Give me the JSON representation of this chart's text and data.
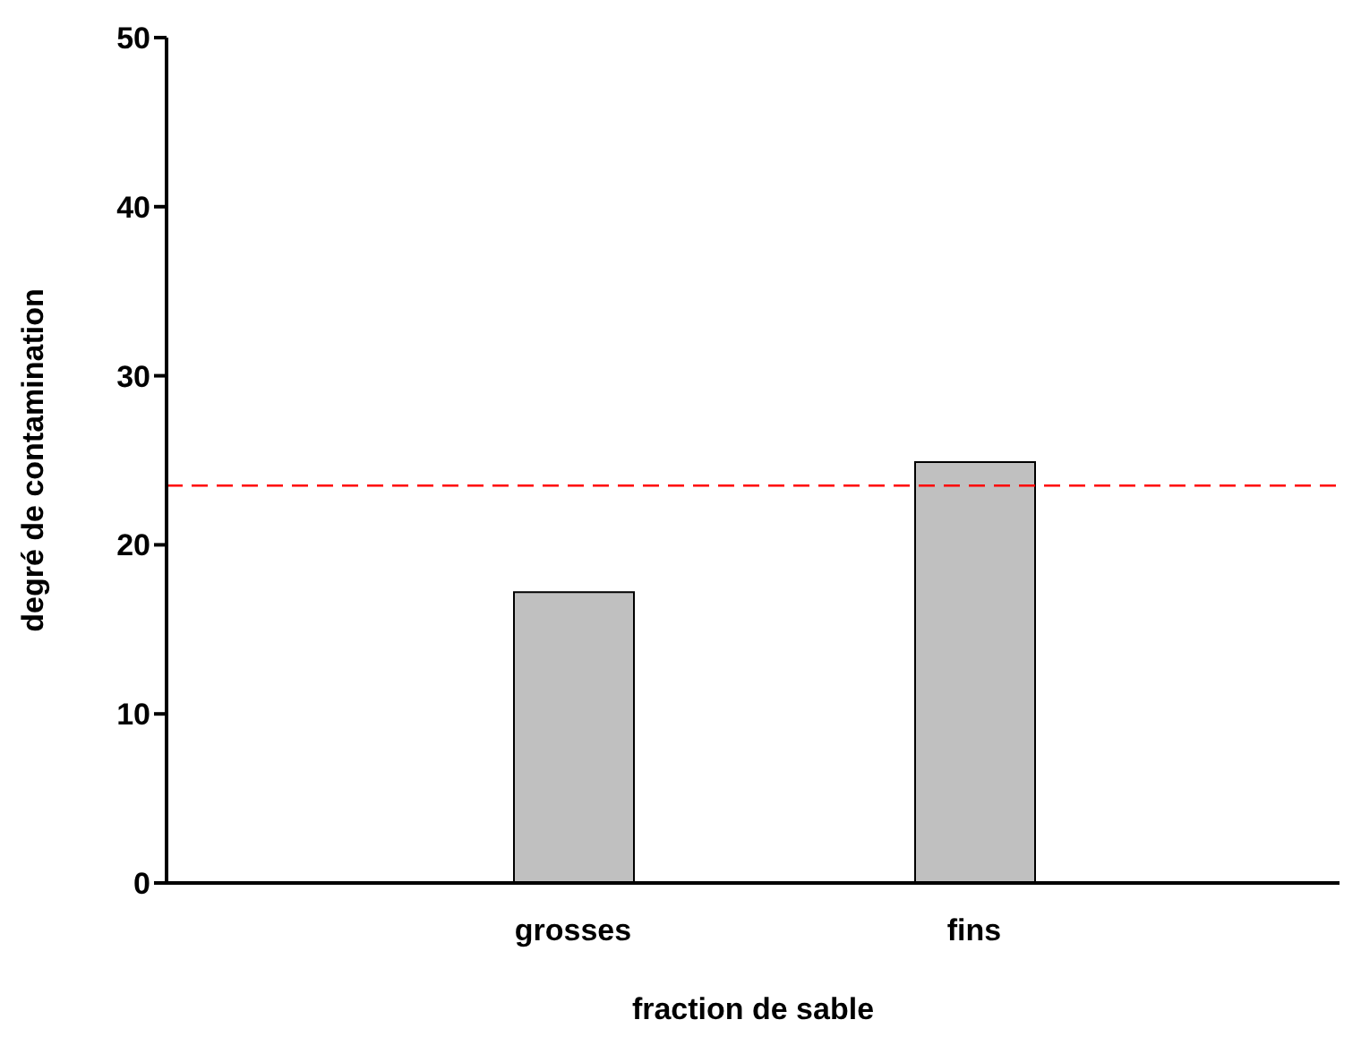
{
  "chart_data": {
    "type": "bar",
    "xlabel": "fraction de sable",
    "ylabel": "degré de contamination",
    "categories": [
      "grosses",
      "fins"
    ],
    "values": [
      17.2,
      24.9
    ],
    "color": "#c0c0c0",
    "ylim": [
      0,
      50
    ],
    "yticks": [
      0,
      10,
      20,
      30,
      40,
      50
    ],
    "grid": false,
    "legend": false,
    "ref_lines": [
      {
        "axis": "y",
        "value": 23.5,
        "color": "#ff0000",
        "line_style": "dashed"
      }
    ]
  }
}
